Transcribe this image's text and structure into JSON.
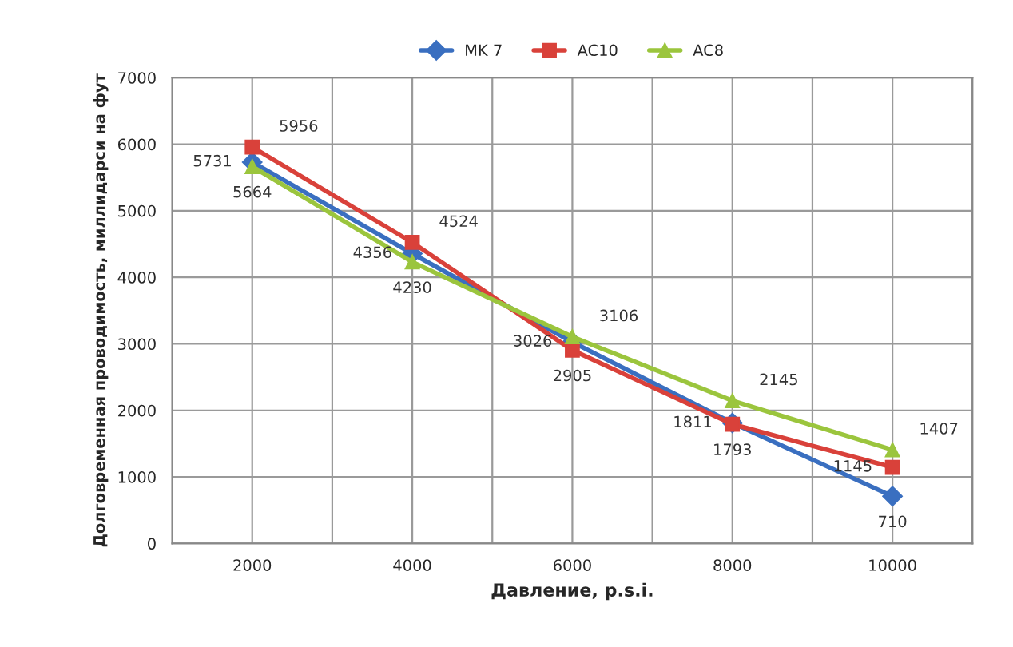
{
  "chart_data": {
    "type": "line",
    "xlabel": "Давление, p.s.i.",
    "ylabel": "Долговременная проводимость, миллидарси на фут",
    "x": [
      2000,
      4000,
      6000,
      8000,
      10000
    ],
    "series": [
      {
        "name": "MK 7",
        "color": "#3a6fc0",
        "marker": "diamond",
        "values": [
          5731,
          4356,
          3026,
          1811,
          710
        ]
      },
      {
        "name": "AC10",
        "color": "#d9413a",
        "marker": "square",
        "values": [
          5956,
          4524,
          2905,
          1793,
          1145
        ]
      },
      {
        "name": "AC8",
        "color": "#9bc53d",
        "marker": "triangle",
        "values": [
          5664,
          4230,
          3106,
          2145,
          1407
        ]
      }
    ],
    "xlim": [
      1000,
      11000
    ],
    "xticks": [
      {
        "value": 1000,
        "label": null
      },
      2000,
      {
        "value": 3000,
        "label": null
      },
      4000,
      {
        "value": 5000,
        "label": null
      },
      6000,
      {
        "value": 7000,
        "label": null
      },
      8000,
      {
        "value": 9000,
        "label": null
      },
      10000,
      {
        "value": 11000,
        "label": null
      }
    ],
    "ylim": [
      0,
      7000
    ],
    "yticks": [
      0,
      1000,
      2000,
      3000,
      4000,
      5000,
      6000,
      7000
    ],
    "grid": true,
    "legend": "top",
    "data_labels": true,
    "line_style": "solid"
  }
}
